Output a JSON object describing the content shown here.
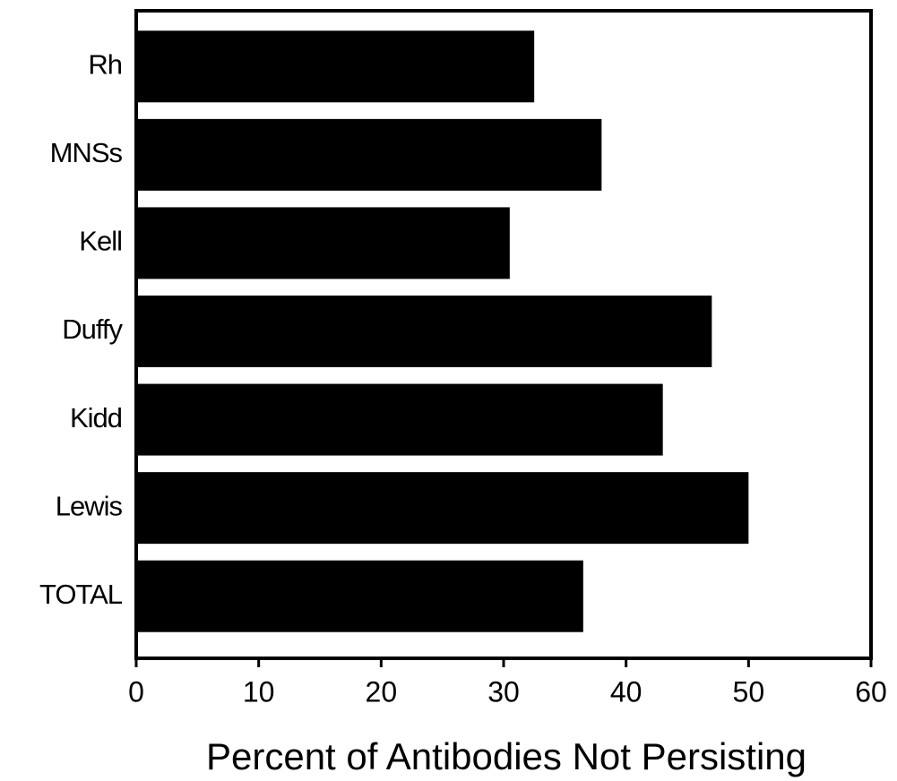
{
  "chart_data": {
    "type": "bar",
    "orientation": "horizontal",
    "categories": [
      "Rh",
      "MNSs",
      "Kell",
      "Duffy",
      "Kidd",
      "Lewis",
      "TOTAL"
    ],
    "values": [
      32.5,
      38,
      30.5,
      47,
      43,
      50,
      36.5
    ],
    "color": "#000000",
    "xlabel": "Percent of Antibodies Not Persisting",
    "xlim": [
      0,
      60
    ],
    "xticks": [
      0,
      10,
      20,
      30,
      40,
      50,
      60
    ]
  }
}
